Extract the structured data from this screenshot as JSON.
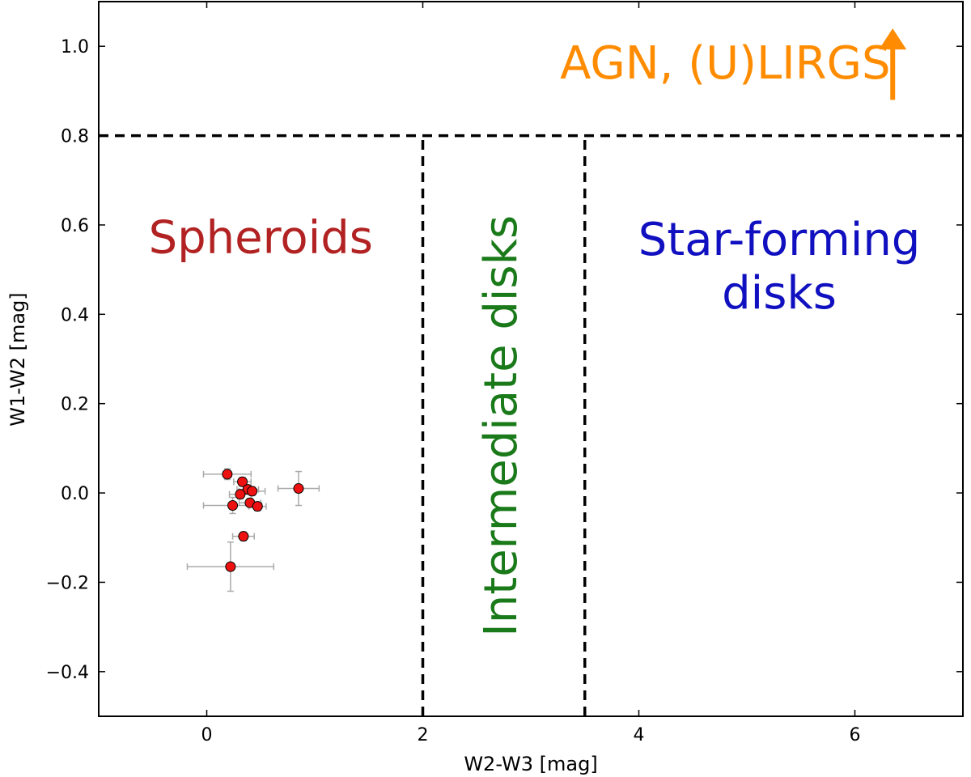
{
  "chart_data": {
    "type": "scatter",
    "title": "",
    "xlabel": "W2-W3 [mag]",
    "ylabel": "W1-W2 [mag]",
    "xlim": [
      -1,
      7
    ],
    "ylim": [
      -0.5,
      1.1
    ],
    "xticks": [
      0,
      2,
      4,
      6
    ],
    "xtick_labels": [
      "0",
      "2",
      "4",
      "6"
    ],
    "yticks": [
      -0.4,
      -0.2,
      0.0,
      0.2,
      0.4,
      0.6,
      0.8,
      1.0
    ],
    "ytick_labels": [
      "−0.4",
      "−0.2",
      "0.0",
      "0.2",
      "0.4",
      "0.6",
      "0.8",
      "1.0"
    ],
    "grid": false,
    "points": [
      {
        "x": 0.19,
        "y": 0.042,
        "xerr": 0.22,
        "yerr": 0.012
      },
      {
        "x": 0.33,
        "y": 0.025,
        "xerr": 0.08,
        "yerr": 0.01
      },
      {
        "x": 0.38,
        "y": 0.008,
        "xerr": 0.1,
        "yerr": 0.01
      },
      {
        "x": 0.31,
        "y": -0.003,
        "xerr": 0.1,
        "yerr": 0.01
      },
      {
        "x": 0.42,
        "y": 0.004,
        "xerr": 0.12,
        "yerr": 0.01
      },
      {
        "x": 0.4,
        "y": -0.022,
        "xerr": 0.1,
        "yerr": 0.01
      },
      {
        "x": 0.47,
        "y": -0.03,
        "xerr": 0.08,
        "yerr": 0.01
      },
      {
        "x": 0.24,
        "y": -0.028,
        "xerr": 0.27,
        "yerr": 0.018
      },
      {
        "x": 0.85,
        "y": 0.01,
        "xerr": 0.19,
        "yerr": 0.038
      },
      {
        "x": 0.34,
        "y": -0.097,
        "xerr": 0.1,
        "yerr": 0.01
      },
      {
        "x": 0.22,
        "y": -0.165,
        "xerr": 0.4,
        "yerr": 0.055
      }
    ],
    "marker_color": "#ee1111",
    "errorbar_color": "#aaaaaa",
    "divider_lines": [
      {
        "orientation": "horizontal",
        "y": 0.8,
        "x_from": -1,
        "x_to": 7
      },
      {
        "orientation": "vertical",
        "x": 2.0,
        "y_from": -0.5,
        "y_to": 0.8
      },
      {
        "orientation": "vertical",
        "x": 3.5,
        "y_from": -0.5,
        "y_to": 0.8
      }
    ],
    "regions": [
      {
        "id": "spheroids",
        "lines": [
          "Spheroids"
        ],
        "color": "#b22222",
        "x": 0.5,
        "y": 0.565,
        "rotate": false
      },
      {
        "id": "intermediate",
        "lines": [
          "Intermediate disks"
        ],
        "color": "#1a7a1a",
        "x": 2.75,
        "y": 0.15,
        "rotate": true
      },
      {
        "id": "star-forming",
        "lines": [
          "Star-forming",
          "disks"
        ],
        "color": "#1010c0",
        "x": 5.3,
        "y": 0.5,
        "rotate": false
      },
      {
        "id": "agn",
        "lines": [
          "AGN, (U)LIRGS"
        ],
        "color": "#ff8c00",
        "x": 4.8,
        "y": 0.955,
        "rotate": false
      }
    ],
    "arrow": {
      "x": 6.35,
      "y_from": 0.88,
      "y_to": 1.04,
      "color": "#ff8c00"
    }
  }
}
